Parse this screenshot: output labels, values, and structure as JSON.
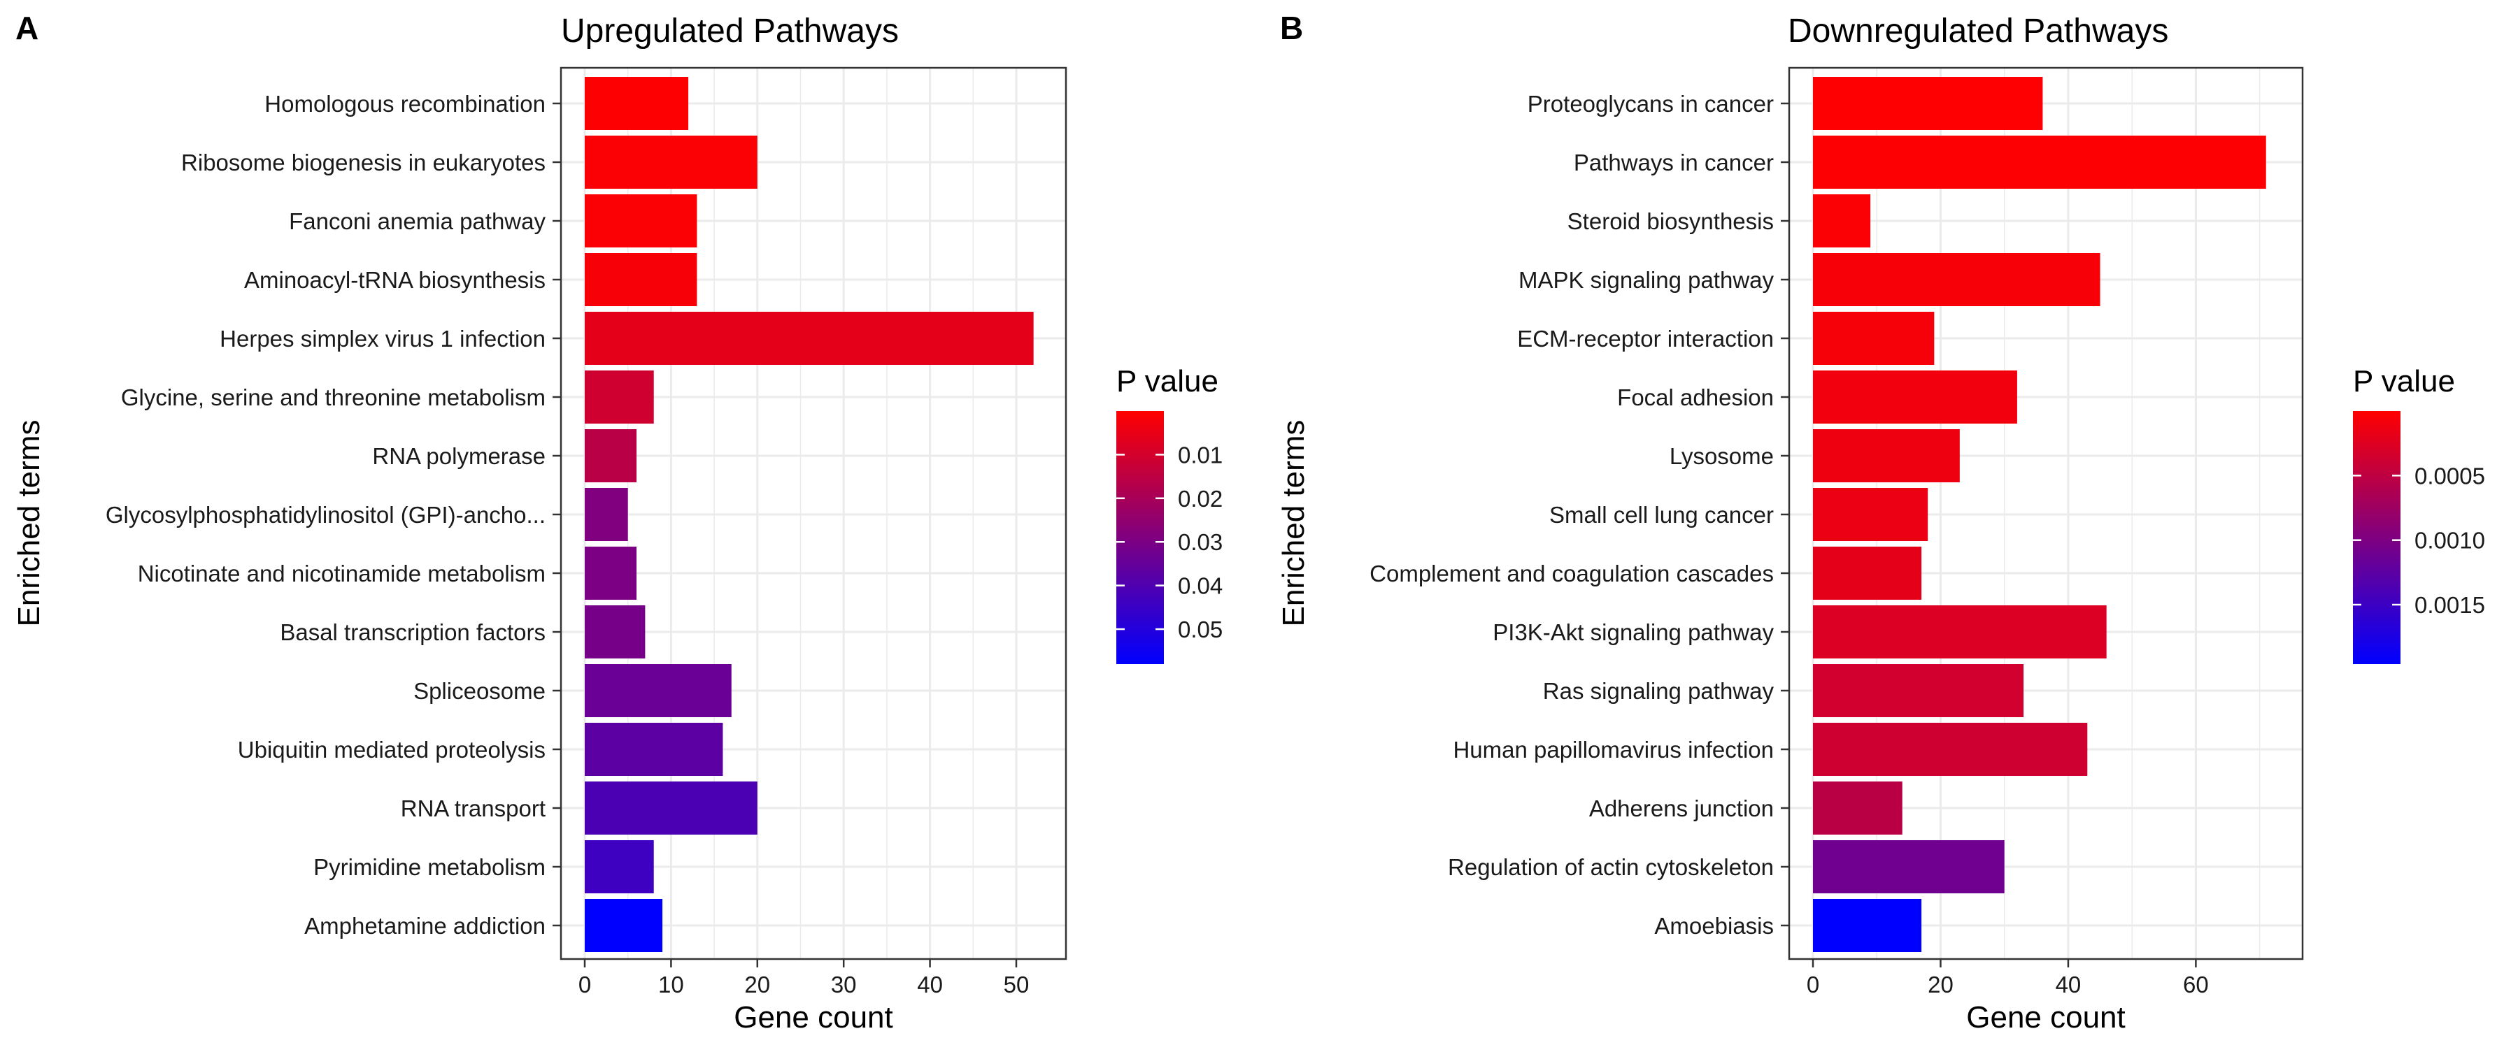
{
  "chart_data": [
    {
      "panel_label": "A",
      "type": "bar",
      "orientation": "horizontal",
      "title": "Upregulated Pathways",
      "xlabel": "Gene count",
      "ylabel": "Enriched terms",
      "xlim": [
        0,
        53
      ],
      "x_ticks": [
        0,
        10,
        20,
        30,
        40,
        50
      ],
      "grid": true,
      "legend": {
        "title": "P value",
        "placement": "right",
        "type": "colorbar",
        "colors": [
          "#ff0000",
          "#0000ff"
        ],
        "range": [
          0,
          0.058
        ],
        "ticks": [
          0.01,
          0.02,
          0.03,
          0.04,
          0.05
        ],
        "tick_labels": [
          "0.01",
          "0.02",
          "0.03",
          "0.04",
          "0.05"
        ]
      },
      "categories": [
        "Homologous recombination",
        "Ribosome biogenesis in eukaryotes",
        "Fanconi anemia pathway",
        "Aminoacyl-tRNA biosynthesis",
        "Herpes simplex virus 1 infection",
        "Glycine, serine and threonine metabolism",
        "RNA polymerase",
        "Glycosylphosphatidylinositol (GPI)-ancho...",
        "Nicotinate and nicotinamide metabolism",
        "Basal transcription factors",
        "Spliceosome",
        "Ubiquitin mediated proteolysis",
        "RNA transport",
        "Pyrimidine metabolism",
        "Amphetamine addiction"
      ],
      "values": [
        12,
        20,
        13,
        13,
        52,
        8,
        6,
        5,
        6,
        7,
        17,
        16,
        20,
        8,
        9
      ],
      "p_values": [
        0.0005,
        0.0008,
        0.001,
        0.0015,
        0.006,
        0.011,
        0.016,
        0.029,
        0.03,
        0.031,
        0.034,
        0.037,
        0.041,
        0.044,
        0.058
      ]
    },
    {
      "panel_label": "B",
      "type": "bar",
      "orientation": "horizontal",
      "title": "Downregulated Pathways",
      "xlabel": "Gene count",
      "ylabel": "Enriched terms",
      "xlim": [
        0,
        73
      ],
      "x_ticks": [
        0,
        20,
        40,
        60
      ],
      "grid": true,
      "legend": {
        "title": "P value",
        "placement": "right",
        "type": "colorbar",
        "colors": [
          "#ff0000",
          "#0000ff"
        ],
        "range": [
          0,
          0.00196
        ],
        "ticks": [
          0.0005,
          0.001,
          0.0015
        ],
        "tick_labels": [
          "0.0005",
          "0.0010",
          "0.0015"
        ]
      },
      "categories": [
        "Proteoglycans in cancer",
        "Pathways in cancer",
        "Steroid biosynthesis",
        "MAPK signaling pathway",
        "ECM-receptor interaction",
        "Focal adhesion",
        "Lysosome",
        "Small cell lung cancer",
        "Complement and coagulation cascades",
        "PI3K-Akt signaling pathway",
        "Ras signaling pathway",
        "Human papillomavirus infection",
        "Adherens junction",
        "Regulation of actin cytoskeleton",
        "Amoebiasis"
      ],
      "values": [
        36,
        71,
        9,
        45,
        19,
        32,
        23,
        18,
        17,
        46,
        33,
        43,
        14,
        30,
        17
      ],
      "p_values": [
        1e-05,
        2e-05,
        3e-05,
        5e-05,
        7e-05,
        0.0001,
        0.00012,
        0.00015,
        0.0002,
        0.00028,
        0.00035,
        0.00038,
        0.00053,
        0.0011,
        0.00196
      ]
    }
  ]
}
